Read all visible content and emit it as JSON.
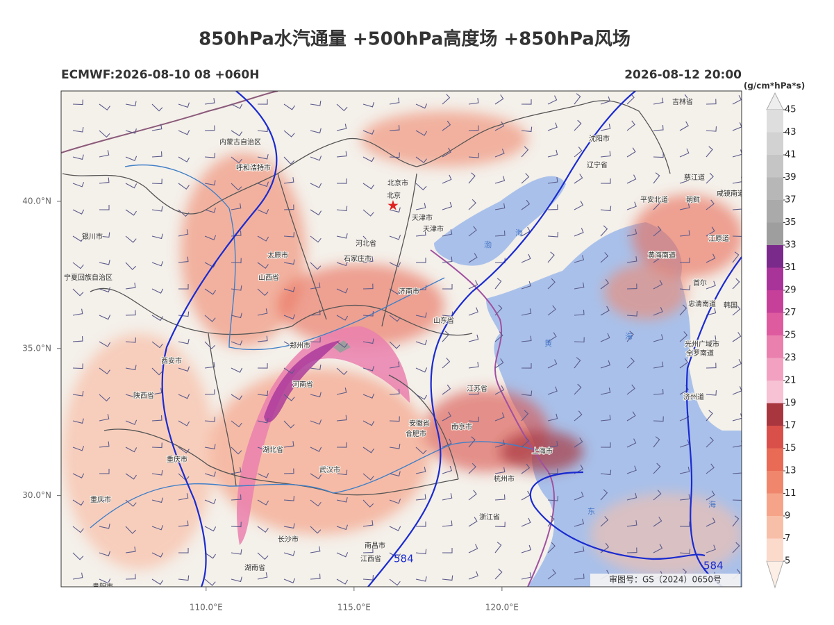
{
  "title": "850hPa水汽通量 +500hPa高度场 +850hPa风场",
  "subtitle_left": "ECMWF:2026-08-10 08 +060H",
  "subtitle_right": "2026-08-12 20:00",
  "map_axes": {
    "xlim": [
      105.1,
      128.1
    ],
    "ylim": [
      26.9,
      43.75
    ],
    "xticks": [
      {
        "value": 110,
        "label": "110.0°E"
      },
      {
        "value": 115,
        "label": "115.0°E"
      },
      {
        "value": 120,
        "label": "120.0°E"
      }
    ],
    "yticks": [
      {
        "value": 30,
        "label": "30.0°N"
      },
      {
        "value": 35,
        "label": "35.0°N"
      },
      {
        "value": 40,
        "label": "40.0°N"
      }
    ]
  },
  "colorbar": {
    "label": "(g/cm*hPa*s)",
    "lim": [
      5,
      45
    ],
    "ticks": [
      5,
      7,
      9,
      11,
      13,
      15,
      17,
      19,
      21,
      23,
      25,
      27,
      29,
      31,
      33,
      35,
      37,
      39,
      41,
      43,
      45
    ],
    "colors": [
      "#fbd9cb",
      "#f8bfa8",
      "#f5a489",
      "#f0876c",
      "#e96a55",
      "#d9504a",
      "#a8363f",
      "#f7c2d3",
      "#f2a2c0",
      "#ea80ae",
      "#de5ba0",
      "#c6409a",
      "#a8349a",
      "#7a2a8a",
      "#9e9e9e",
      "#aaaaaa",
      "#b7b7b7",
      "#c5c5c5",
      "#d2d2d2",
      "#dedede"
    ]
  },
  "places": [
    "内蒙古自治区",
    "呼和浩特市",
    "北京市",
    "北京",
    "天津市",
    "天津市",
    "河北省",
    "太原市",
    "石家庄市",
    "山西省",
    "银川市",
    "宁夏回族自治区",
    "济南市",
    "山东省",
    "郑州市",
    "河南省",
    "西安市",
    "陕西省",
    "安徽省",
    "合肥市",
    "南京市",
    "江苏省",
    "上海市",
    "杭州市",
    "浙江省",
    "湖北省",
    "武汉市",
    "重庆市",
    "重庆市",
    "长沙市",
    "湖南省",
    "南昌市",
    "江西省",
    "贵阳市",
    "沈阳市",
    "辽宁省",
    "吉林省",
    "慈江道",
    "咸镜南道",
    "平安北道",
    "朝鲜",
    "黄海南道",
    "江原道",
    "首尔",
    "忠清南道",
    "韩国",
    "光州广域市",
    "全罗南道",
    "济州道"
  ],
  "seas": [
    "渤",
    "海",
    "黄",
    "海",
    "东",
    "海"
  ],
  "contour_labels": [
    "584",
    "584"
  ],
  "approval": "审图号：GS（2024）0650号"
}
